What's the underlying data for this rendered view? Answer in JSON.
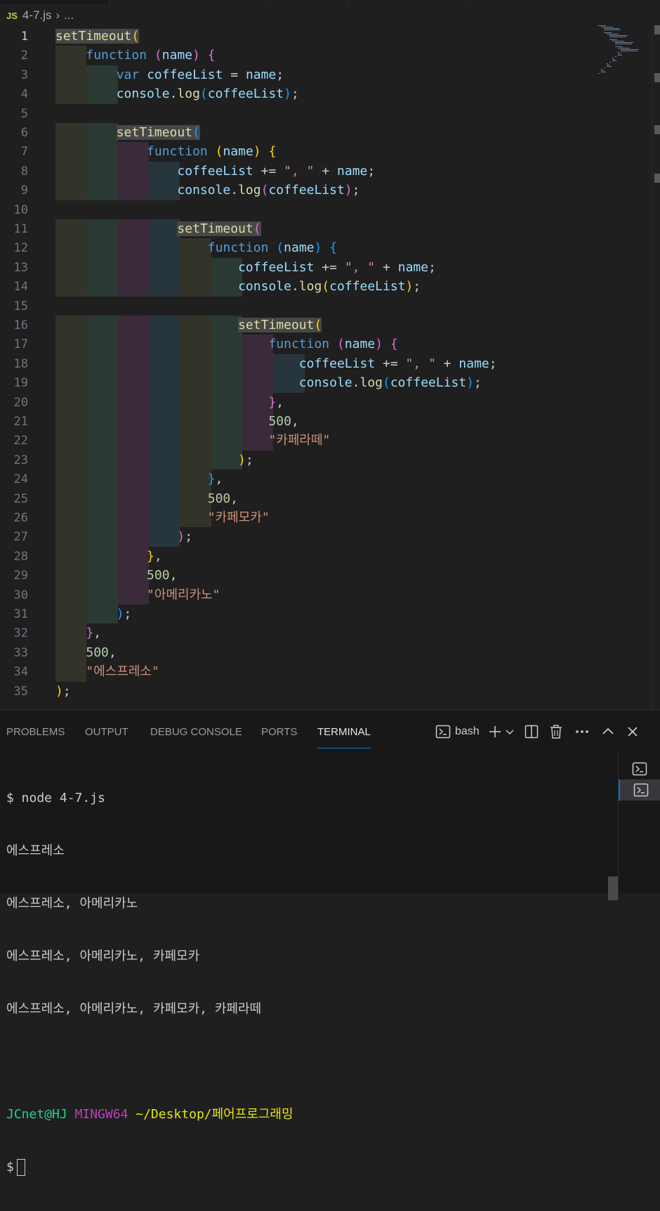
{
  "breadcrumb": {
    "file_icon": "JS",
    "file": "4-7.js",
    "more": "..."
  },
  "editor": {
    "line_numbers": [
      "1",
      "2",
      "3",
      "4",
      "5",
      "6",
      "7",
      "8",
      "9",
      "10",
      "11",
      "12",
      "13",
      "14",
      "15",
      "16",
      "17",
      "18",
      "19",
      "20",
      "21",
      "22",
      "23",
      "24",
      "25",
      "26",
      "27",
      "28",
      "29",
      "30",
      "31",
      "32",
      "33",
      "34",
      "35"
    ],
    "lines": [
      "setTimeout(",
      "    function (name) {",
      "        var coffeeList = name;",
      "        console.log(coffeeList);",
      "",
      "        setTimeout(",
      "            function (name) {",
      "                coffeeList += \", \" + name;",
      "                console.log(coffeeList);",
      "",
      "                setTimeout(",
      "                    function (name) {",
      "                        coffeeList += \", \" + name;",
      "                        console.log(coffeeList);",
      "",
      "                        setTimeout(",
      "                            function (name) {",
      "                                coffeeList += \", \" + name;",
      "                                console.log(coffeeList);",
      "                            },",
      "                            500,",
      "                            \"카페라떼\"",
      "                        );",
      "                    },",
      "                    500,",
      "                    \"카페모카\"",
      "                );",
      "            },",
      "            500,",
      "            \"아메리카노\"",
      "        );",
      "    },",
      "    500,",
      "    \"에스프레소\"",
      ");"
    ],
    "lightbulb_icon": "lightbulb-icon"
  },
  "panel": {
    "tabs": [
      "PROBLEMS",
      "OUTPUT",
      "DEBUG CONSOLE",
      "PORTS",
      "TERMINAL"
    ],
    "active_tab": "TERMINAL",
    "shell_label": "bash",
    "icons": [
      "terminal-icon",
      "plus-icon",
      "chevron-down-icon",
      "split-icon",
      "trash-icon",
      "more-icon",
      "chevron-up-icon",
      "close-icon"
    ]
  },
  "terminal": {
    "command": "$ node 4-7.js",
    "output": [
      "에스프레소",
      "에스프레소, 아메리카노",
      "에스프레소, 아메리카노, 카페모카",
      "에스프레소, 아메리카노, 카페모카, 카페라떼"
    ],
    "prompt_user": "JCnet@HJ",
    "prompt_env": "MINGW64",
    "prompt_path": "~/Desktop/페어프로그래밍",
    "prompt_symbol": "$"
  },
  "colors": {
    "background": "#1f1f1f",
    "keyword": "#569cd6",
    "function": "#dcdcaa",
    "variable": "#9cdcfe",
    "string": "#ce9178",
    "number": "#b5cea8",
    "accent": "#0078d4"
  }
}
